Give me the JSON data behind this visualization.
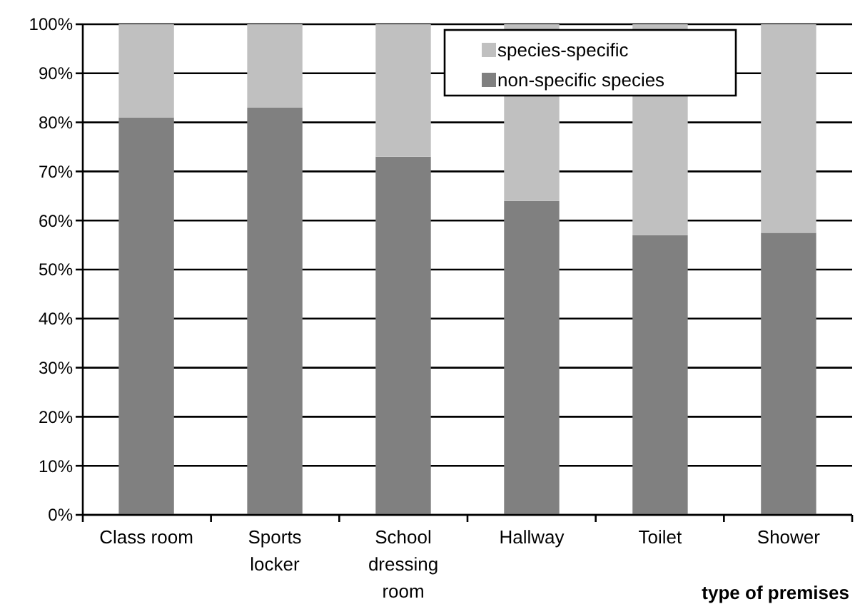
{
  "chart_data": {
    "type": "bar",
    "stacked": true,
    "xlabel": "type of premises",
    "categories": [
      "Class room",
      "Sports locker",
      "School dressing room",
      "Hallway",
      "Toilet",
      "Shower"
    ],
    "series": [
      {
        "name": "non-specific species",
        "color": "#808080",
        "values": [
          81,
          83,
          73,
          64,
          57,
          57.5
        ]
      },
      {
        "name": "species-specific",
        "color": "#c0c0c0",
        "values": [
          19,
          17,
          27,
          36,
          43,
          42.5
        ]
      }
    ],
    "ylim": [
      0,
      100
    ],
    "yticks": [
      {
        "value": 0,
        "label": "0%"
      },
      {
        "value": 10,
        "label": "10%"
      },
      {
        "value": 20,
        "label": "20%"
      },
      {
        "value": 30,
        "label": "30%"
      },
      {
        "value": 40,
        "label": "40%"
      },
      {
        "value": 50,
        "label": "50%"
      },
      {
        "value": 60,
        "label": "60%"
      },
      {
        "value": 70,
        "label": "70%"
      },
      {
        "value": 80,
        "label": "80%"
      },
      {
        "value": 90,
        "label": "90%"
      },
      {
        "value": 100,
        "label": "100%"
      }
    ],
    "grid": "y",
    "legend": "top"
  }
}
